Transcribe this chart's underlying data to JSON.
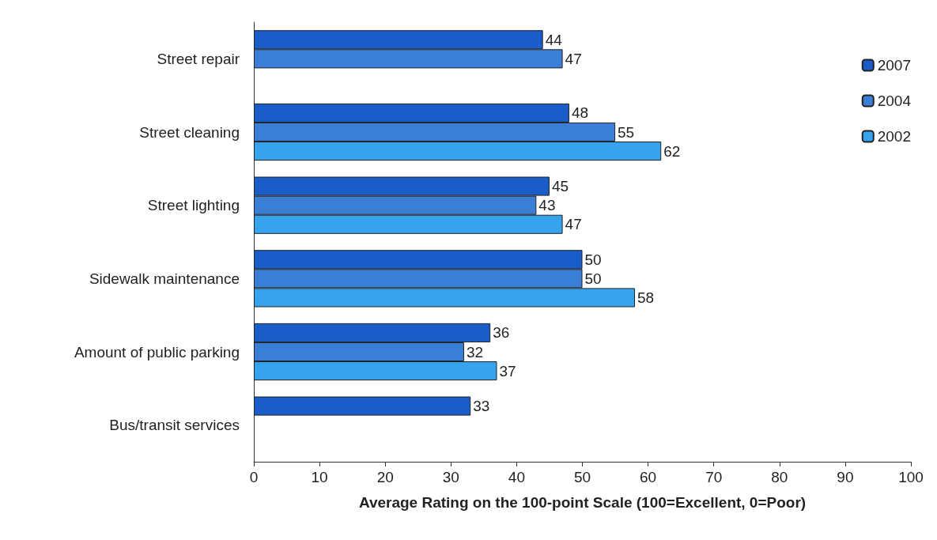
{
  "chart_data": {
    "type": "bar",
    "orientation": "horizontal",
    "xlabel": "Average Rating on the 100-point Scale (100=Excellent, 0=Poor)",
    "categories": [
      "Street repair",
      "Street cleaning",
      "Street lighting",
      "Sidewalk maintenance",
      "Amount of public parking",
      "Bus/transit services"
    ],
    "series": [
      {
        "name": "2007",
        "color": "#1a5cc8",
        "values": [
          44,
          48,
          45,
          50,
          36,
          33
        ]
      },
      {
        "name": "2004",
        "color": "#3b7ed6",
        "values": [
          47,
          55,
          43,
          50,
          32,
          null
        ]
      },
      {
        "name": "2002",
        "color": "#36a3ec",
        "values": [
          null,
          62,
          47,
          58,
          37,
          null
        ]
      }
    ],
    "xlim": [
      0,
      100
    ],
    "xticks": [
      0,
      10,
      20,
      30,
      40,
      50,
      60,
      70,
      80,
      90,
      100
    ],
    "grid": false,
    "legend": "top right",
    "data_labels": true
  }
}
